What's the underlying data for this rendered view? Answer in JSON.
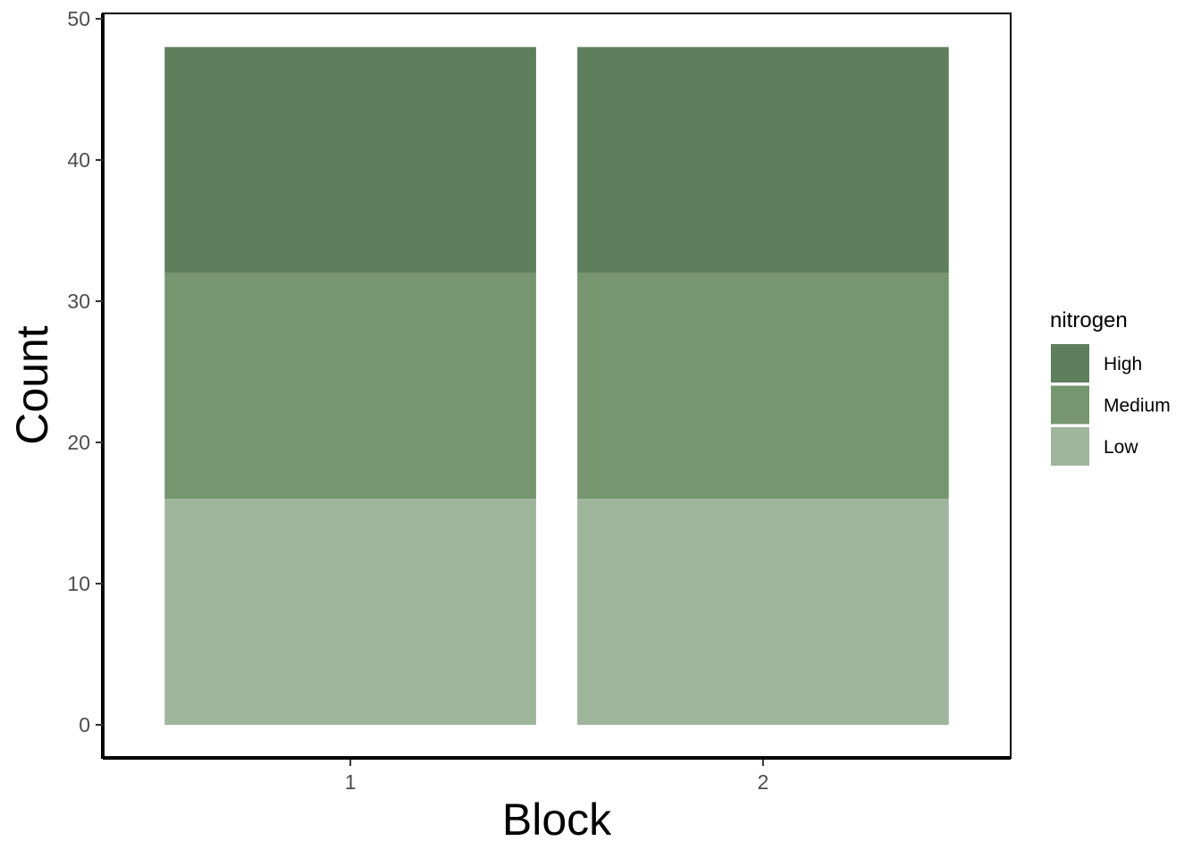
{
  "chart_data": {
    "type": "bar",
    "stacked": true,
    "categories": [
      "1",
      "2"
    ],
    "series": [
      {
        "name": "Low",
        "values": [
          16,
          16
        ],
        "color": "#9fb59c"
      },
      {
        "name": "Medium",
        "values": [
          16,
          16
        ],
        "color": "#769670"
      },
      {
        "name": "High",
        "values": [
          16,
          16
        ],
        "color": "#5e7e5c"
      }
    ],
    "xlabel": "Block",
    "ylabel": "Count",
    "ylim": [
      0,
      50
    ],
    "yticks": [
      0,
      10,
      20,
      30,
      40,
      50
    ],
    "grid": false,
    "legend": {
      "title": "nitrogen",
      "placement": "right",
      "entries": [
        "High",
        "Medium",
        "Low"
      ]
    }
  }
}
